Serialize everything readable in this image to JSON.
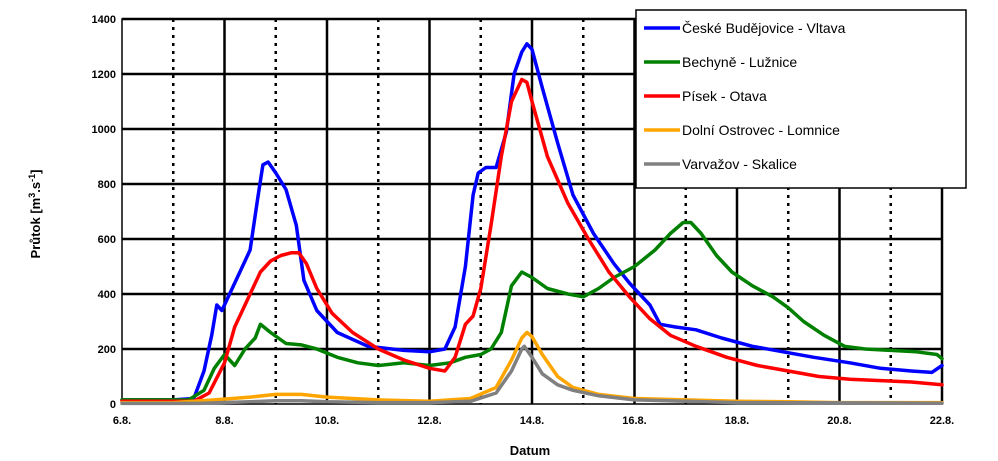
{
  "chart_data": {
    "type": "line",
    "xlabel": "Datum",
    "ylabel": "Průtok [m³.s⁻¹]",
    "ylabel_parts": {
      "main": "Průtok [m",
      "sup1": "3",
      "mid": ".s",
      "sup2": "-1",
      "end": "]"
    },
    "xlim": [
      6,
      22
    ],
    "ylim": [
      0,
      1400
    ],
    "x_ticks": [
      {
        "value": 6,
        "label": "6.8."
      },
      {
        "value": 8,
        "label": "8.8."
      },
      {
        "value": 10,
        "label": "10.8."
      },
      {
        "value": 12,
        "label": "12.8."
      },
      {
        "value": 14,
        "label": "14.8."
      },
      {
        "value": 16,
        "label": "16.8."
      },
      {
        "value": 18,
        "label": "18.8."
      },
      {
        "value": 20,
        "label": "20.8."
      },
      {
        "value": 22,
        "label": "22.8."
      }
    ],
    "y_ticks": [
      0,
      200,
      400,
      600,
      800,
      1000,
      1200,
      1400
    ],
    "x_solid_gridlines": [
      8,
      10,
      12,
      14,
      16,
      18,
      20,
      22
    ],
    "x_dotted_gridlines": [
      7,
      9,
      11,
      13,
      15,
      17,
      19,
      21
    ],
    "grid": true,
    "legend_position": "top-right",
    "series": [
      {
        "name": "České Budějovice - Vltava",
        "color": "#0000ff",
        "points": [
          [
            6,
            15
          ],
          [
            7,
            15
          ],
          [
            7.4,
            20
          ],
          [
            7.6,
            120
          ],
          [
            7.75,
            250
          ],
          [
            7.85,
            360
          ],
          [
            7.95,
            340
          ],
          [
            8.1,
            400
          ],
          [
            8.3,
            480
          ],
          [
            8.5,
            560
          ],
          [
            8.65,
            750
          ],
          [
            8.75,
            870
          ],
          [
            8.85,
            880
          ],
          [
            9.0,
            840
          ],
          [
            9.2,
            780
          ],
          [
            9.4,
            650
          ],
          [
            9.55,
            450
          ],
          [
            9.8,
            340
          ],
          [
            10.2,
            260
          ],
          [
            10.8,
            210
          ],
          [
            11.5,
            195
          ],
          [
            12.0,
            190
          ],
          [
            12.3,
            200
          ],
          [
            12.5,
            280
          ],
          [
            12.7,
            500
          ],
          [
            12.85,
            760
          ],
          [
            12.95,
            840
          ],
          [
            13.1,
            860
          ],
          [
            13.3,
            860
          ],
          [
            13.5,
            990
          ],
          [
            13.65,
            1200
          ],
          [
            13.8,
            1280
          ],
          [
            13.9,
            1310
          ],
          [
            14.0,
            1290
          ],
          [
            14.2,
            1150
          ],
          [
            14.5,
            950
          ],
          [
            14.8,
            760
          ],
          [
            15.2,
            620
          ],
          [
            15.6,
            510
          ],
          [
            15.9,
            440
          ],
          [
            16.1,
            400
          ],
          [
            16.3,
            360
          ],
          [
            16.5,
            290
          ],
          [
            16.8,
            280
          ],
          [
            17.2,
            270
          ],
          [
            17.7,
            240
          ],
          [
            18.3,
            210
          ],
          [
            18.9,
            190
          ],
          [
            19.5,
            170
          ],
          [
            20.2,
            150
          ],
          [
            20.8,
            130
          ],
          [
            21.4,
            120
          ],
          [
            21.8,
            115
          ],
          [
            22,
            140
          ]
        ]
      },
      {
        "name": "Bechyně - Lužnice",
        "color": "#008000",
        "points": [
          [
            6,
            15
          ],
          [
            7.3,
            15
          ],
          [
            7.6,
            50
          ],
          [
            7.8,
            130
          ],
          [
            8.0,
            180
          ],
          [
            8.2,
            140
          ],
          [
            8.4,
            200
          ],
          [
            8.6,
            240
          ],
          [
            8.7,
            290
          ],
          [
            8.9,
            260
          ],
          [
            9.2,
            220
          ],
          [
            9.5,
            215
          ],
          [
            9.8,
            200
          ],
          [
            10.2,
            170
          ],
          [
            10.6,
            150
          ],
          [
            11.0,
            140
          ],
          [
            11.5,
            150
          ],
          [
            12.0,
            140
          ],
          [
            12.4,
            150
          ],
          [
            12.7,
            170
          ],
          [
            13.0,
            180
          ],
          [
            13.2,
            200
          ],
          [
            13.4,
            260
          ],
          [
            13.6,
            430
          ],
          [
            13.8,
            480
          ],
          [
            14.0,
            460
          ],
          [
            14.3,
            420
          ],
          [
            14.7,
            400
          ],
          [
            15.0,
            390
          ],
          [
            15.3,
            420
          ],
          [
            15.6,
            460
          ],
          [
            16.0,
            500
          ],
          [
            16.4,
            560
          ],
          [
            16.7,
            620
          ],
          [
            16.95,
            660
          ],
          [
            17.1,
            660
          ],
          [
            17.3,
            620
          ],
          [
            17.6,
            540
          ],
          [
            17.9,
            480
          ],
          [
            18.3,
            430
          ],
          [
            18.7,
            390
          ],
          [
            19.0,
            350
          ],
          [
            19.3,
            300
          ],
          [
            19.7,
            250
          ],
          [
            20.1,
            210
          ],
          [
            20.5,
            200
          ],
          [
            21.0,
            195
          ],
          [
            21.5,
            190
          ],
          [
            21.9,
            180
          ],
          [
            22,
            165
          ]
        ]
      },
      {
        "name": "Písek - Otava",
        "color": "#ff0000",
        "points": [
          [
            6,
            10
          ],
          [
            7.4,
            10
          ],
          [
            7.7,
            40
          ],
          [
            8.0,
            150
          ],
          [
            8.2,
            280
          ],
          [
            8.4,
            360
          ],
          [
            8.55,
            420
          ],
          [
            8.7,
            480
          ],
          [
            8.9,
            520
          ],
          [
            9.1,
            540
          ],
          [
            9.3,
            550
          ],
          [
            9.45,
            550
          ],
          [
            9.6,
            510
          ],
          [
            9.8,
            420
          ],
          [
            10.1,
            330
          ],
          [
            10.5,
            260
          ],
          [
            11.0,
            200
          ],
          [
            11.5,
            160
          ],
          [
            12.0,
            130
          ],
          [
            12.3,
            120
          ],
          [
            12.5,
            170
          ],
          [
            12.7,
            290
          ],
          [
            12.85,
            320
          ],
          [
            13.0,
            420
          ],
          [
            13.2,
            650
          ],
          [
            13.4,
            900
          ],
          [
            13.6,
            1100
          ],
          [
            13.8,
            1180
          ],
          [
            13.9,
            1170
          ],
          [
            14.0,
            1100
          ],
          [
            14.3,
            900
          ],
          [
            14.7,
            730
          ],
          [
            15.1,
            600
          ],
          [
            15.5,
            480
          ],
          [
            15.9,
            390
          ],
          [
            16.3,
            310
          ],
          [
            16.7,
            250
          ],
          [
            17.2,
            210
          ],
          [
            17.8,
            170
          ],
          [
            18.4,
            140
          ],
          [
            19.0,
            120
          ],
          [
            19.6,
            100
          ],
          [
            20.2,
            90
          ],
          [
            20.8,
            85
          ],
          [
            21.4,
            80
          ],
          [
            22,
            70
          ]
        ]
      },
      {
        "name": "Dolní Ostrovec - Lomnice",
        "color": "#ffa500",
        "points": [
          [
            6,
            5
          ],
          [
            7.0,
            5
          ],
          [
            7.8,
            15
          ],
          [
            8.5,
            25
          ],
          [
            9.0,
            35
          ],
          [
            9.5,
            35
          ],
          [
            10.0,
            25
          ],
          [
            11.0,
            15
          ],
          [
            12.0,
            10
          ],
          [
            12.8,
            20
          ],
          [
            13.3,
            60
          ],
          [
            13.6,
            160
          ],
          [
            13.8,
            240
          ],
          [
            13.9,
            260
          ],
          [
            14.0,
            245
          ],
          [
            14.2,
            180
          ],
          [
            14.5,
            100
          ],
          [
            14.8,
            60
          ],
          [
            15.3,
            35
          ],
          [
            16.0,
            20
          ],
          [
            17.0,
            15
          ],
          [
            18.0,
            10
          ],
          [
            19.0,
            8
          ],
          [
            20.0,
            5
          ],
          [
            22,
            5
          ]
        ]
      },
      {
        "name": "Varvažov - Skalice",
        "color": "#808080",
        "points": [
          [
            6,
            2
          ],
          [
            7.5,
            2
          ],
          [
            8.5,
            8
          ],
          [
            9.0,
            12
          ],
          [
            9.5,
            12
          ],
          [
            10.0,
            8
          ],
          [
            11.0,
            5
          ],
          [
            12.0,
            5
          ],
          [
            12.8,
            10
          ],
          [
            13.3,
            40
          ],
          [
            13.6,
            120
          ],
          [
            13.8,
            200
          ],
          [
            13.85,
            210
          ],
          [
            14.0,
            170
          ],
          [
            14.2,
            110
          ],
          [
            14.5,
            70
          ],
          [
            14.8,
            50
          ],
          [
            15.3,
            30
          ],
          [
            16.0,
            15
          ],
          [
            17.0,
            10
          ],
          [
            18.0,
            5
          ],
          [
            22,
            3
          ]
        ]
      }
    ]
  }
}
